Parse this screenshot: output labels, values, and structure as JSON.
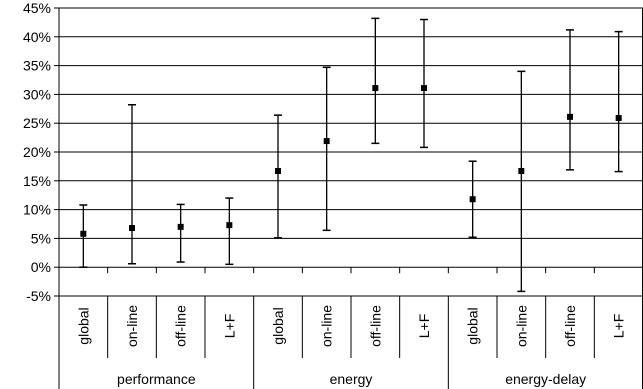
{
  "chart_data": {
    "type": "scatter",
    "subtype": "error-bar",
    "title": "",
    "xlabel": "",
    "ylabel": "",
    "ylim": [
      -5,
      45
    ],
    "y_ticks": [
      "-5%",
      "0%",
      "5%",
      "10%",
      "15%",
      "20%",
      "25%",
      "30%",
      "35%",
      "40%",
      "45%"
    ],
    "y_tick_values": [
      -5,
      0,
      5,
      10,
      15,
      20,
      25,
      30,
      35,
      40,
      45
    ],
    "grid": "horizontal",
    "legend": "none",
    "groups": [
      {
        "label": "performance",
        "categories": [
          "global",
          "on-line",
          "off-line",
          "L+F"
        ]
      },
      {
        "label": "energy",
        "categories": [
          "global",
          "on-line",
          "off-line",
          "L+F"
        ]
      },
      {
        "label": "energy-delay",
        "categories": [
          "global",
          "on-line",
          "off-line",
          "L+F"
        ]
      }
    ],
    "points": [
      {
        "group": "performance",
        "category": "global",
        "value": 5.8,
        "low": 0.0,
        "high": 10.8
      },
      {
        "group": "performance",
        "category": "on-line",
        "value": 6.8,
        "low": 0.6,
        "high": 28.2
      },
      {
        "group": "performance",
        "category": "off-line",
        "value": 7.0,
        "low": 0.9,
        "high": 10.9
      },
      {
        "group": "performance",
        "category": "L+F",
        "value": 7.3,
        "low": 0.5,
        "high": 12.0
      },
      {
        "group": "energy",
        "category": "global",
        "value": 16.7,
        "low": 5.1,
        "high": 26.4
      },
      {
        "group": "energy",
        "category": "on-line",
        "value": 21.9,
        "low": 6.4,
        "high": 34.7
      },
      {
        "group": "energy",
        "category": "off-line",
        "value": 31.1,
        "low": 21.5,
        "high": 43.2
      },
      {
        "group": "energy",
        "category": "L+F",
        "value": 31.1,
        "low": 20.8,
        "high": 43.0
      },
      {
        "group": "energy-delay",
        "category": "global",
        "value": 11.8,
        "low": 5.2,
        "high": 18.4
      },
      {
        "group": "energy-delay",
        "category": "on-line",
        "value": 16.7,
        "low": -4.2,
        "high": 34.0
      },
      {
        "group": "energy-delay",
        "category": "off-line",
        "value": 26.1,
        "low": 16.9,
        "high": 41.2
      },
      {
        "group": "energy-delay",
        "category": "L+F",
        "value": 25.9,
        "low": 16.6,
        "high": 40.9
      }
    ]
  }
}
